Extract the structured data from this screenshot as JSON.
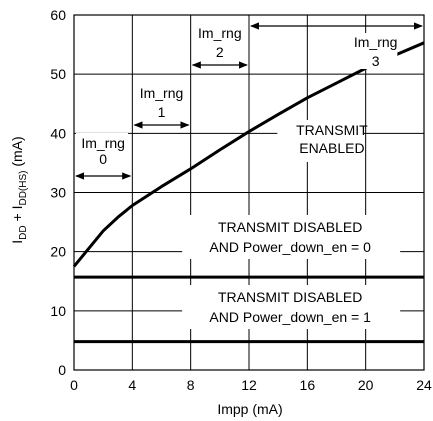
{
  "chart_data": {
    "type": "line",
    "xlabel": "Impp (mA)",
    "ylabel_parts": [
      "I",
      "DD",
      " + I",
      "DD(HS)",
      " (mA)"
    ],
    "xlim": [
      0,
      24
    ],
    "ylim": [
      0,
      60
    ],
    "xticks": [
      "0",
      "4",
      "8",
      "12",
      "16",
      "20",
      "24"
    ],
    "yticks": [
      "0",
      "10",
      "20",
      "30",
      "40",
      "50",
      "60"
    ],
    "grid": true,
    "series": [
      {
        "name": "TRANSMIT ENABLED",
        "x": [
          0,
          1,
          2,
          3,
          4,
          6,
          8,
          10,
          12,
          14,
          16,
          18,
          20,
          22,
          24
        ],
        "y": [
          17.5,
          20.5,
          23.5,
          25.8,
          27.8,
          31.0,
          34.0,
          37.2,
          40.3,
          43.2,
          46.0,
          48.5,
          51.0,
          53.2,
          55.3
        ]
      },
      {
        "name": "TRANSMIT DISABLED AND Power_down_en = 0",
        "x": [
          0,
          24
        ],
        "y": [
          15.7,
          15.7
        ]
      },
      {
        "name": "TRANSMIT DISABLED AND Power_down_en = 1",
        "x": [
          0,
          24
        ],
        "y": [
          4.8,
          4.8
        ]
      }
    ],
    "annotations": {
      "rng0": [
        "Im_rng",
        "0"
      ],
      "rng1": [
        "Im_rng",
        "1"
      ],
      "rng2": [
        "Im_rng",
        "2"
      ],
      "rng3": [
        "Im_rng",
        "3"
      ],
      "enabled": [
        "TRANSMIT",
        "ENABLED"
      ],
      "disabled0": [
        "TRANSMIT DISABLED",
        "AND Power_down_en = 0"
      ],
      "disabled1": [
        "TRANSMIT DISABLED",
        "AND Power_down_en = 1"
      ]
    }
  }
}
